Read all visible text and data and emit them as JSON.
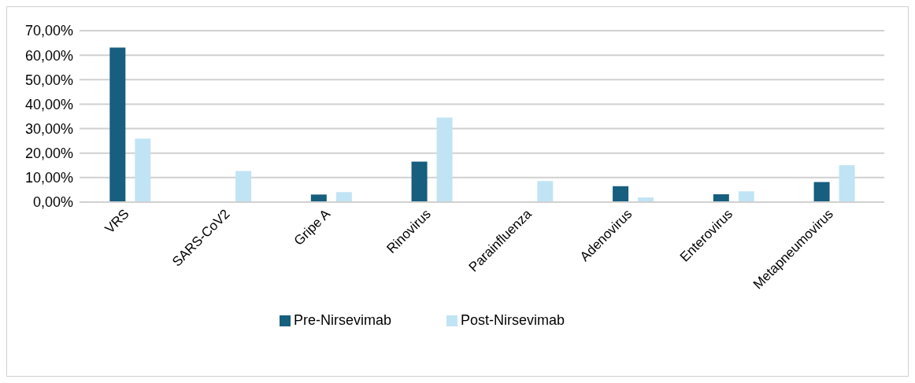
{
  "chart_data": {
    "type": "bar",
    "categories": [
      "VRS",
      "SARS-CoV2",
      "Gripe A",
      "Rinovirus",
      "Parainfluenza",
      "Adenovirus",
      "Enterovirus",
      "Metapneumovirus"
    ],
    "series": [
      {
        "name": "Pre-Nirsevimab",
        "color": "#175e7f",
        "values": [
          63.1,
          0,
          3.1,
          16.5,
          0,
          6.5,
          3.2,
          8.2
        ]
      },
      {
        "name": "Post-Nirsevimab",
        "color": "#c1e4f4",
        "values": [
          25.9,
          12.7,
          4.1,
          34.5,
          8.6,
          1.9,
          4.4,
          15.1
        ]
      }
    ],
    "ylim": [
      0,
      70
    ],
    "yticks": [
      {
        "value": 0,
        "label": "0,00%"
      },
      {
        "value": 10,
        "label": "10,00%"
      },
      {
        "value": 20,
        "label": "20,00%"
      },
      {
        "value": 30,
        "label": "30,00%"
      },
      {
        "value": 40,
        "label": "40,00%"
      },
      {
        "value": 50,
        "label": "50,00%"
      },
      {
        "value": 60,
        "label": "60,00%"
      },
      {
        "value": 70,
        "label": "70,00%"
      }
    ],
    "grid": "y",
    "legend": "bottom"
  }
}
